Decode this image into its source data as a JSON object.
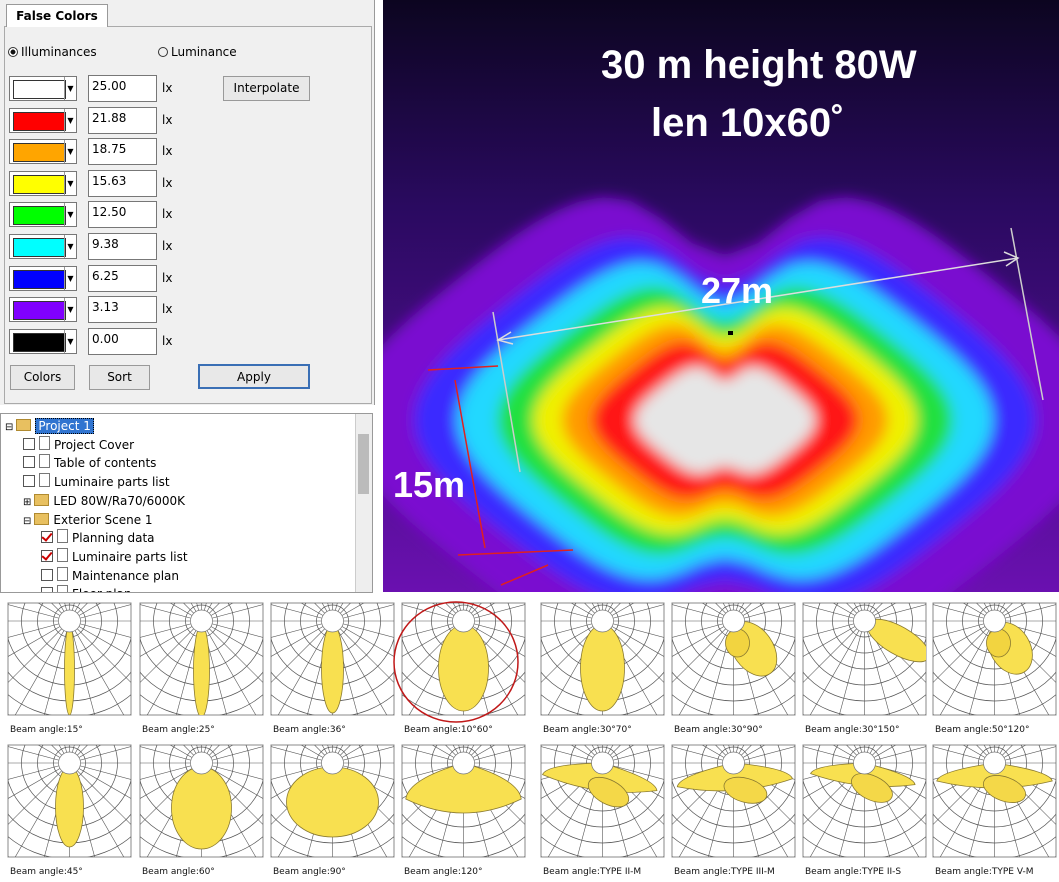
{
  "false_colors": {
    "tab": "False Colors",
    "radio_options": [
      {
        "label": "Illuminances",
        "selected": true
      },
      {
        "label": "Luminance",
        "selected": false
      }
    ],
    "unit": "lx",
    "rows": [
      {
        "color": "#ffffff",
        "value": "25.00"
      },
      {
        "color": "#ff0000",
        "value": "21.88"
      },
      {
        "color": "#ffa500",
        "value": "18.75"
      },
      {
        "color": "#ffff00",
        "value": "15.63"
      },
      {
        "color": "#00ff00",
        "value": "12.50"
      },
      {
        "color": "#00ffff",
        "value": "9.38"
      },
      {
        "color": "#0000ff",
        "value": "6.25"
      },
      {
        "color": "#8000ff",
        "value": "3.13"
      },
      {
        "color": "#000000",
        "value": "0.00"
      }
    ],
    "buttons": {
      "interpolate": "Interpolate",
      "colors": "Colors",
      "sort": "Sort",
      "apply": "Apply"
    }
  },
  "tree": {
    "items": [
      {
        "label": "Project 1",
        "level": 0,
        "icon": "folder",
        "selected": true
      },
      {
        "label": "Project Cover",
        "level": 1,
        "icon": "doc",
        "checked": false
      },
      {
        "label": "Table of contents",
        "level": 1,
        "icon": "doc",
        "checked": false
      },
      {
        "label": "Luminaire parts list",
        "level": 1,
        "icon": "doc",
        "checked": false
      },
      {
        "label": "LED 80W/Ra70/6000K",
        "level": 1,
        "icon": "folder"
      },
      {
        "label": "Exterior Scene 1",
        "level": 1,
        "icon": "folder"
      },
      {
        "label": "Planning data",
        "level": 2,
        "icon": "doc",
        "checked": true
      },
      {
        "label": "Luminaire parts list",
        "level": 2,
        "icon": "doc",
        "checked": true
      },
      {
        "label": "Maintenance plan",
        "level": 2,
        "icon": "doc",
        "checked": false
      },
      {
        "label": "Floor plan",
        "level": 2,
        "icon": "doc",
        "checked": false
      }
    ]
  },
  "rendering": {
    "title_line1": "30 m height  80W",
    "title_line2": "len 10x60˚",
    "width_label": "27m",
    "depth_label": "15m"
  },
  "beam_plots": [
    "Beam angle:15°",
    "Beam angle:25°",
    "Beam angle:36°",
    "Beam angle:10°60°",
    "Beam angle:30°70°",
    "Beam angle:30°90°",
    "Beam angle:30°150°",
    "Beam angle:50°120°",
    "Beam angle:45°",
    "Beam angle:60°",
    "Beam angle:90°",
    "Beam angle:120°",
    "Beam angle:TYPE II-M",
    "Beam angle:TYPE III-M",
    "Beam angle:TYPE II-S",
    "Beam angle:TYPE V-M"
  ]
}
